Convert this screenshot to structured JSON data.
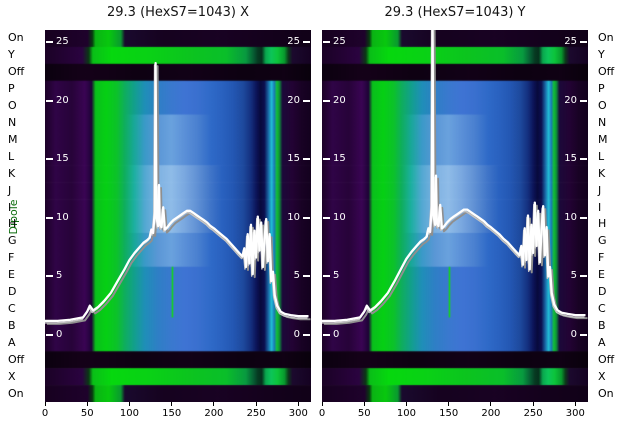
{
  "figure": {
    "titles": {
      "left": "29.3 (HexS7=1043) X",
      "right": "29.3 (HexS7=1043) Y"
    },
    "y_axis_label": "Dipole",
    "colors": {
      "axis_label_green": "#0b6b0b",
      "tick_text_white": "#ffffff",
      "tick_text_black": "#000000",
      "curve_white": "#ffffff",
      "curve_shadow_grey": "#8f8f8f"
    }
  },
  "chart_data": {
    "type": "heatmap",
    "x_range": [
      0,
      315
    ],
    "x_ticks": [
      0,
      50,
      100,
      150,
      200,
      250,
      300
    ],
    "inner_y_ticks": [
      25,
      20,
      15,
      10,
      5,
      0
    ],
    "inner_y_range": [
      0,
      26
    ],
    "rows": [
      "On",
      "Y",
      "Off",
      "P",
      "O",
      "N",
      "M",
      "L",
      "K",
      "J",
      "I",
      "H",
      "G",
      "F",
      "E",
      "D",
      "C",
      "B",
      "A",
      "Off",
      "X",
      "On"
    ],
    "row_pattern_map": [
      "on_edge",
      "green_full",
      "off_dark",
      "specA",
      "specA",
      "specB",
      "specB",
      "specB",
      "specC",
      "specC",
      "specC",
      "specC",
      "specB",
      "specB",
      "specA",
      "specA",
      "specA",
      "specA",
      "specA",
      "off_dark",
      "green_full",
      "on_edge"
    ],
    "row_patterns": {
      "specA": [
        [
          0,
          "#1d0228"
        ],
        [
          0.04,
          "#300447"
        ],
        [
          0.1,
          "#270339"
        ],
        [
          0.15,
          "#3a0554"
        ],
        [
          0.175,
          "#1e0336"
        ],
        [
          0.19,
          "#0abf1c"
        ],
        [
          0.23,
          "#06d014"
        ],
        [
          0.27,
          "#0cc22a"
        ],
        [
          0.3,
          "#0fae5e"
        ],
        [
          0.335,
          "#12a08c"
        ],
        [
          0.375,
          "#1f8fb8"
        ],
        [
          0.425,
          "#2f7fc6"
        ],
        [
          0.475,
          "#3a79cf"
        ],
        [
          0.525,
          "#3f74d4"
        ],
        [
          0.575,
          "#3a70cf"
        ],
        [
          0.625,
          "#2f6ac8"
        ],
        [
          0.665,
          "#2a62c0"
        ],
        [
          0.705,
          "#2458b4"
        ],
        [
          0.745,
          "#1e4a9e"
        ],
        [
          0.775,
          "#142f7e"
        ],
        [
          0.795,
          "#0c1458"
        ],
        [
          0.81,
          "#080a3c"
        ],
        [
          0.825,
          "#0c1050"
        ],
        [
          0.84,
          "#1a6aa8"
        ],
        [
          0.852,
          "#22c0d8"
        ],
        [
          0.862,
          "#1a78b8"
        ],
        [
          0.872,
          "#12c232"
        ],
        [
          0.882,
          "#0e8a3a"
        ],
        [
          0.892,
          "#1c0a3a"
        ],
        [
          0.93,
          "#230334"
        ],
        [
          0.965,
          "#190225"
        ],
        [
          1,
          "#13011e"
        ]
      ],
      "specB": [
        [
          0,
          "#1d0228"
        ],
        [
          0.04,
          "#300447"
        ],
        [
          0.1,
          "#270339"
        ],
        [
          0.15,
          "#3a0554"
        ],
        [
          0.175,
          "#1e0336"
        ],
        [
          0.19,
          "#0abf1c"
        ],
        [
          0.23,
          "#06d014"
        ],
        [
          0.27,
          "#0cc22a"
        ],
        [
          0.3,
          "#0fae5e"
        ],
        [
          0.335,
          "#18a898"
        ],
        [
          0.375,
          "#3a9ac8"
        ],
        [
          0.425,
          "#5b97d6"
        ],
        [
          0.475,
          "#6aa2de"
        ],
        [
          0.525,
          "#5b90d8"
        ],
        [
          0.575,
          "#4a80d0"
        ],
        [
          0.625,
          "#2f6ac8"
        ],
        [
          0.665,
          "#2a62c0"
        ],
        [
          0.705,
          "#2458b4"
        ],
        [
          0.745,
          "#1e4a9e"
        ],
        [
          0.775,
          "#142f7e"
        ],
        [
          0.795,
          "#0c1458"
        ],
        [
          0.81,
          "#080a3c"
        ],
        [
          0.825,
          "#0c1050"
        ],
        [
          0.84,
          "#1a6aa8"
        ],
        [
          0.852,
          "#22c0d8"
        ],
        [
          0.862,
          "#1a78b8"
        ],
        [
          0.872,
          "#12c232"
        ],
        [
          0.882,
          "#0e8a3a"
        ],
        [
          0.892,
          "#1c0a3a"
        ],
        [
          0.93,
          "#230334"
        ],
        [
          0.965,
          "#190225"
        ],
        [
          1,
          "#13011e"
        ]
      ],
      "specC": [
        [
          0,
          "#1d0228"
        ],
        [
          0.04,
          "#300447"
        ],
        [
          0.1,
          "#270339"
        ],
        [
          0.15,
          "#3a0554"
        ],
        [
          0.175,
          "#1e0336"
        ],
        [
          0.19,
          "#0abf1c"
        ],
        [
          0.23,
          "#06d014"
        ],
        [
          0.27,
          "#0cc22a"
        ],
        [
          0.3,
          "#0fae5e"
        ],
        [
          0.335,
          "#1cb0a0"
        ],
        [
          0.375,
          "#52a8d2"
        ],
        [
          0.425,
          "#7fb2e2"
        ],
        [
          0.475,
          "#8fbce8"
        ],
        [
          0.525,
          "#7aa8e0"
        ],
        [
          0.575,
          "#5f90d4"
        ],
        [
          0.625,
          "#3f74c8"
        ],
        [
          0.665,
          "#2a62c0"
        ],
        [
          0.705,
          "#2458b4"
        ],
        [
          0.745,
          "#1e4a9e"
        ],
        [
          0.775,
          "#142f7e"
        ],
        [
          0.795,
          "#0c1458"
        ],
        [
          0.81,
          "#080a3c"
        ],
        [
          0.825,
          "#0c1050"
        ],
        [
          0.84,
          "#1a6aa8"
        ],
        [
          0.852,
          "#22c0d8"
        ],
        [
          0.862,
          "#1a78b8"
        ],
        [
          0.872,
          "#12c232"
        ],
        [
          0.882,
          "#0e8a3a"
        ],
        [
          0.892,
          "#1c0a3a"
        ],
        [
          0.93,
          "#230334"
        ],
        [
          0.965,
          "#190225"
        ],
        [
          1,
          "#13011e"
        ]
      ],
      "green_full": [
        [
          0,
          "#1b0226"
        ],
        [
          0.14,
          "#2b0340"
        ],
        [
          0.165,
          "#0a3a14"
        ],
        [
          0.18,
          "#0abf18"
        ],
        [
          0.25,
          "#06d80e"
        ],
        [
          0.4,
          "#0ad116"
        ],
        [
          0.55,
          "#0cc41f"
        ],
        [
          0.68,
          "#0abf2a"
        ],
        [
          0.755,
          "#089a40"
        ],
        [
          0.785,
          "#075a32"
        ],
        [
          0.8,
          "#063a22"
        ],
        [
          0.815,
          "#05301c"
        ],
        [
          0.83,
          "#0aa84e"
        ],
        [
          0.85,
          "#0cc45a"
        ],
        [
          0.875,
          "#0cc43a"
        ],
        [
          0.9,
          "#089a2e"
        ],
        [
          0.915,
          "#0c3a1a"
        ],
        [
          0.93,
          "#1c0a2e"
        ],
        [
          1,
          "#150222"
        ]
      ],
      "off_dark": [
        [
          0,
          "#0b010f"
        ],
        [
          0.15,
          "#150119"
        ],
        [
          0.35,
          "#0e0112"
        ],
        [
          0.55,
          "#120117"
        ],
        [
          0.75,
          "#0d0111"
        ],
        [
          0.9,
          "#100114"
        ],
        [
          1,
          "#09010c"
        ]
      ],
      "on_edge": [
        [
          0,
          "#170120"
        ],
        [
          0.16,
          "#1f022c"
        ],
        [
          0.178,
          "#083a10"
        ],
        [
          0.19,
          "#0ab414"
        ],
        [
          0.24,
          "#08c80e"
        ],
        [
          0.285,
          "#0a9a30"
        ],
        [
          0.3,
          "#1a0a2e"
        ],
        [
          0.45,
          "#16021f"
        ],
        [
          0.65,
          "#190223"
        ],
        [
          0.85,
          "#14011c"
        ],
        [
          1,
          "#110118"
        ]
      ]
    },
    "artifacts": [
      {
        "x": 150,
        "row_start": 14,
        "row_end": 16,
        "color": "#14d814"
      }
    ],
    "panels": [
      {
        "title": "29.3 (HexS7=1043) X",
        "curve": [
          [
            0,
            1.2
          ],
          [
            15,
            1.2
          ],
          [
            30,
            1.3
          ],
          [
            45,
            1.5
          ],
          [
            50,
            2.0
          ],
          [
            53,
            2.5
          ],
          [
            57,
            2.1
          ],
          [
            63,
            2.4
          ],
          [
            70,
            2.9
          ],
          [
            78,
            3.6
          ],
          [
            86,
            4.6
          ],
          [
            94,
            5.6
          ],
          [
            100,
            6.4
          ],
          [
            106,
            7.0
          ],
          [
            112,
            7.5
          ],
          [
            117,
            7.9
          ],
          [
            121,
            8.1
          ],
          [
            124,
            8.3
          ],
          [
            126,
            9.0
          ],
          [
            128,
            8.7
          ],
          [
            130,
            10.5
          ],
          [
            131,
            23.2
          ],
          [
            132,
            10.0
          ],
          [
            134,
            9.3
          ],
          [
            135,
            12.8
          ],
          [
            136,
            9.5
          ],
          [
            138,
            9.2
          ],
          [
            140,
            10.9
          ],
          [
            142,
            9.0
          ],
          [
            145,
            9.2
          ],
          [
            148,
            9.5
          ],
          [
            152,
            9.8
          ],
          [
            156,
            10.0
          ],
          [
            160,
            10.2
          ],
          [
            164,
            10.4
          ],
          [
            168,
            10.6
          ],
          [
            172,
            10.6
          ],
          [
            176,
            10.4
          ],
          [
            180,
            10.2
          ],
          [
            184,
            10.0
          ],
          [
            188,
            9.8
          ],
          [
            192,
            9.6
          ],
          [
            196,
            9.3
          ],
          [
            200,
            9.1
          ],
          [
            205,
            8.8
          ],
          [
            210,
            8.5
          ],
          [
            215,
            8.2
          ],
          [
            220,
            7.8
          ],
          [
            225,
            7.4
          ],
          [
            230,
            7.0
          ],
          [
            234,
            6.7
          ],
          [
            236,
            7.4
          ],
          [
            238,
            5.8
          ],
          [
            240,
            8.6
          ],
          [
            242,
            6.1
          ],
          [
            244,
            9.4
          ],
          [
            246,
            5.2
          ],
          [
            248,
            8.9
          ],
          [
            250,
            6.6
          ],
          [
            252,
            10.1
          ],
          [
            254,
            7.2
          ],
          [
            256,
            9.6
          ],
          [
            258,
            5.8
          ],
          [
            260,
            8.2
          ],
          [
            262,
            9.9
          ],
          [
            264,
            6.3
          ],
          [
            266,
            8.6
          ],
          [
            268,
            4.6
          ],
          [
            270,
            5.4
          ],
          [
            272,
            3.4
          ],
          [
            275,
            2.5
          ],
          [
            279,
            2.0
          ],
          [
            284,
            1.8
          ],
          [
            291,
            1.7
          ],
          [
            300,
            1.6
          ],
          [
            312,
            1.6
          ]
        ]
      },
      {
        "title": "29.3 (HexS7=1043) Y",
        "curve": [
          [
            0,
            1.2
          ],
          [
            15,
            1.2
          ],
          [
            30,
            1.3
          ],
          [
            45,
            1.5
          ],
          [
            50,
            2.0
          ],
          [
            53,
            2.5
          ],
          [
            57,
            2.1
          ],
          [
            63,
            2.4
          ],
          [
            70,
            2.9
          ],
          [
            78,
            3.6
          ],
          [
            86,
            4.6
          ],
          [
            94,
            5.7
          ],
          [
            100,
            6.5
          ],
          [
            106,
            7.1
          ],
          [
            112,
            7.6
          ],
          [
            117,
            8.0
          ],
          [
            121,
            8.2
          ],
          [
            124,
            8.4
          ],
          [
            126,
            9.1
          ],
          [
            128,
            8.8
          ],
          [
            130,
            11.0
          ],
          [
            131,
            26.3
          ],
          [
            132,
            10.2
          ],
          [
            134,
            9.4
          ],
          [
            135,
            13.6
          ],
          [
            136,
            9.6
          ],
          [
            138,
            9.3
          ],
          [
            140,
            11.1
          ],
          [
            142,
            9.1
          ],
          [
            145,
            9.3
          ],
          [
            148,
            9.6
          ],
          [
            152,
            9.9
          ],
          [
            156,
            10.1
          ],
          [
            160,
            10.3
          ],
          [
            164,
            10.5
          ],
          [
            168,
            10.7
          ],
          [
            172,
            10.7
          ],
          [
            176,
            10.5
          ],
          [
            180,
            10.3
          ],
          [
            184,
            10.1
          ],
          [
            188,
            9.9
          ],
          [
            192,
            9.7
          ],
          [
            196,
            9.4
          ],
          [
            200,
            9.2
          ],
          [
            205,
            8.9
          ],
          [
            210,
            8.6
          ],
          [
            215,
            8.2
          ],
          [
            220,
            7.9
          ],
          [
            225,
            7.5
          ],
          [
            230,
            7.1
          ],
          [
            234,
            6.8
          ],
          [
            236,
            7.6
          ],
          [
            238,
            6.0
          ],
          [
            240,
            9.1
          ],
          [
            242,
            6.4
          ],
          [
            244,
            10.2
          ],
          [
            246,
            5.6
          ],
          [
            248,
            9.4
          ],
          [
            250,
            7.0
          ],
          [
            252,
            11.3
          ],
          [
            254,
            7.6
          ],
          [
            256,
            10.6
          ],
          [
            258,
            6.2
          ],
          [
            260,
            9.0
          ],
          [
            262,
            11.0
          ],
          [
            264,
            6.8
          ],
          [
            266,
            9.2
          ],
          [
            268,
            5.0
          ],
          [
            270,
            5.8
          ],
          [
            272,
            3.6
          ],
          [
            275,
            2.6
          ],
          [
            279,
            2.1
          ],
          [
            284,
            1.9
          ],
          [
            291,
            1.8
          ],
          [
            300,
            1.7
          ],
          [
            312,
            1.7
          ]
        ]
      }
    ]
  }
}
